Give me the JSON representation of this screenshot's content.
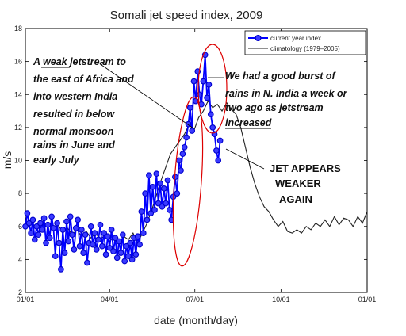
{
  "chart_data": {
    "type": "line",
    "title": "Somali jet speed index, 2009",
    "xlabel": "date (month/day)",
    "ylabel": "m/s",
    "xlim": [
      0,
      365
    ],
    "ylim": [
      2,
      18
    ],
    "x_ticks": [
      {
        "day": 0,
        "label": "01/01"
      },
      {
        "day": 90,
        "label": "04/01"
      },
      {
        "day": 181,
        "label": "07/01"
      },
      {
        "day": 273,
        "label": "10/01"
      },
      {
        "day": 365,
        "label": "01/01"
      }
    ],
    "y_ticks": [
      2,
      4,
      6,
      8,
      10,
      12,
      14,
      16,
      18
    ],
    "legend": {
      "placement": "top-right"
    },
    "series": [
      {
        "name": "current year index",
        "color": "#0000ff",
        "style": "line-with-circles",
        "points": [
          [
            0,
            6.0
          ],
          [
            2,
            6.8
          ],
          [
            4,
            6.2
          ],
          [
            6,
            5.6
          ],
          [
            8,
            6.4
          ],
          [
            10,
            5.2
          ],
          [
            12,
            6.0
          ],
          [
            14,
            5.5
          ],
          [
            16,
            6.2
          ],
          [
            18,
            5.8
          ],
          [
            20,
            6.5
          ],
          [
            22,
            5.0
          ],
          [
            24,
            6.1
          ],
          [
            26,
            5.3
          ],
          [
            28,
            6.6
          ],
          [
            30,
            5.9
          ],
          [
            32,
            4.2
          ],
          [
            34,
            6.2
          ],
          [
            36,
            5.0
          ],
          [
            38,
            3.4
          ],
          [
            40,
            5.8
          ],
          [
            42,
            4.4
          ],
          [
            44,
            6.3
          ],
          [
            46,
            5.1
          ],
          [
            48,
            6.6
          ],
          [
            50,
            5.5
          ],
          [
            52,
            4.6
          ],
          [
            54,
            5.9
          ],
          [
            56,
            6.4
          ],
          [
            58,
            4.8
          ],
          [
            60,
            5.8
          ],
          [
            62,
            4.4
          ],
          [
            64,
            5.5
          ],
          [
            66,
            3.8
          ],
          [
            68,
            5.0
          ],
          [
            70,
            6.0
          ],
          [
            72,
            4.9
          ],
          [
            74,
            5.6
          ],
          [
            76,
            4.6
          ],
          [
            78,
            5.2
          ],
          [
            80,
            6.1
          ],
          [
            82,
            4.8
          ],
          [
            84,
            5.6
          ],
          [
            86,
            4.3
          ],
          [
            88,
            5.4
          ],
          [
            90,
            4.7
          ],
          [
            92,
            5.8
          ],
          [
            94,
            4.5
          ],
          [
            96,
            5.3
          ],
          [
            98,
            4.1
          ],
          [
            100,
            5.1
          ],
          [
            102,
            4.4
          ],
          [
            104,
            5.5
          ],
          [
            106,
            3.9
          ],
          [
            108,
            4.8
          ],
          [
            110,
            4.2
          ],
          [
            112,
            5.0
          ],
          [
            114,
            4.0
          ],
          [
            116,
            5.3
          ],
          [
            118,
            4.3
          ],
          [
            120,
            5.4
          ],
          [
            122,
            4.9
          ],
          [
            124,
            6.9
          ],
          [
            126,
            5.6
          ],
          [
            128,
            8.0
          ],
          [
            130,
            6.4
          ],
          [
            132,
            9.1
          ],
          [
            134,
            6.8
          ],
          [
            136,
            8.4
          ],
          [
            138,
            7.0
          ],
          [
            140,
            9.2
          ],
          [
            142,
            7.4
          ],
          [
            144,
            8.6
          ],
          [
            146,
            7.2
          ],
          [
            148,
            8.3
          ],
          [
            150,
            7.4
          ],
          [
            152,
            8.8
          ],
          [
            154,
            7.0
          ],
          [
            156,
            6.4
          ],
          [
            158,
            7.8
          ],
          [
            160,
            9.0
          ],
          [
            162,
            8.0
          ],
          [
            164,
            10.0
          ],
          [
            166,
            9.4
          ],
          [
            168,
            10.4
          ],
          [
            170,
            10.8
          ],
          [
            172,
            11.4
          ],
          [
            174,
            12.2
          ],
          [
            176,
            13.2
          ],
          [
            178,
            11.8
          ],
          [
            180,
            14.8
          ],
          [
            182,
            13.6
          ],
          [
            184,
            15.4
          ],
          [
            186,
            14.0
          ],
          [
            188,
            13.4
          ],
          [
            190,
            14.8
          ],
          [
            192,
            16.4
          ],
          [
            194,
            13.8
          ],
          [
            196,
            14.6
          ],
          [
            198,
            12.8
          ],
          [
            200,
            12.0
          ],
          [
            202,
            11.6
          ],
          [
            204,
            10.6
          ],
          [
            206,
            10.0
          ],
          [
            208,
            11.2
          ]
        ]
      },
      {
        "name": "climatology (1979–2005)",
        "color": "#222222",
        "style": "line",
        "points": [
          [
            0,
            6.2
          ],
          [
            5,
            6.4
          ],
          [
            10,
            6.0
          ],
          [
            15,
            6.3
          ],
          [
            20,
            5.9
          ],
          [
            25,
            6.2
          ],
          [
            30,
            5.8
          ],
          [
            35,
            6.1
          ],
          [
            40,
            5.6
          ],
          [
            45,
            5.9
          ],
          [
            50,
            5.5
          ],
          [
            55,
            5.8
          ],
          [
            60,
            5.4
          ],
          [
            65,
            5.7
          ],
          [
            70,
            5.3
          ],
          [
            75,
            5.6
          ],
          [
            80,
            5.2
          ],
          [
            85,
            5.5
          ],
          [
            90,
            5.1
          ],
          [
            95,
            5.4
          ],
          [
            100,
            5.0
          ],
          [
            105,
            5.4
          ],
          [
            110,
            5.2
          ],
          [
            115,
            5.6
          ],
          [
            120,
            5.0
          ],
          [
            125,
            5.6
          ],
          [
            130,
            6.2
          ],
          [
            135,
            7.0
          ],
          [
            140,
            7.9
          ],
          [
            145,
            8.8
          ],
          [
            150,
            9.6
          ],
          [
            155,
            10.4
          ],
          [
            160,
            10.8
          ],
          [
            165,
            11.2
          ],
          [
            170,
            11.6
          ],
          [
            175,
            12.2
          ],
          [
            180,
            11.8
          ],
          [
            185,
            12.6
          ],
          [
            190,
            13.0
          ],
          [
            195,
            13.6
          ],
          [
            200,
            13.2
          ],
          [
            205,
            13.4
          ],
          [
            210,
            13.0
          ],
          [
            215,
            13.5
          ],
          [
            220,
            13.1
          ],
          [
            225,
            12.8
          ],
          [
            230,
            12.0
          ],
          [
            235,
            10.8
          ],
          [
            240,
            9.6
          ],
          [
            245,
            8.6
          ],
          [
            250,
            7.8
          ],
          [
            255,
            7.2
          ],
          [
            260,
            6.9
          ],
          [
            265,
            6.4
          ],
          [
            270,
            6.0
          ],
          [
            275,
            6.3
          ],
          [
            280,
            5.7
          ],
          [
            285,
            5.6
          ],
          [
            290,
            5.8
          ],
          [
            295,
            5.6
          ],
          [
            300,
            6.0
          ],
          [
            305,
            5.8
          ],
          [
            310,
            6.2
          ],
          [
            315,
            6.0
          ],
          [
            320,
            6.4
          ],
          [
            325,
            6.0
          ],
          [
            330,
            6.6
          ],
          [
            335,
            6.1
          ],
          [
            340,
            6.5
          ],
          [
            345,
            6.4
          ],
          [
            350,
            6.0
          ],
          [
            355,
            6.6
          ],
          [
            360,
            6.2
          ],
          [
            365,
            6.9
          ]
        ]
      }
    ],
    "annotations": [
      {
        "lines": [
          "A weak jetstream to",
          "the east of Africa and",
          "into western India",
          "resulted in below",
          "normal monsoon",
          "rains in June and",
          "early July"
        ],
        "underline_word": "weak"
      },
      {
        "lines": [
          "We had a good burst of",
          "rains in N. India a week or",
          "two ago as jetstream",
          "increased"
        ],
        "underline_word": "increased"
      },
      {
        "lines": [
          "JET APPEARS",
          "WEAKER",
          "AGAIN"
        ]
      }
    ],
    "highlight_ellipses": 2,
    "grid": false
  }
}
